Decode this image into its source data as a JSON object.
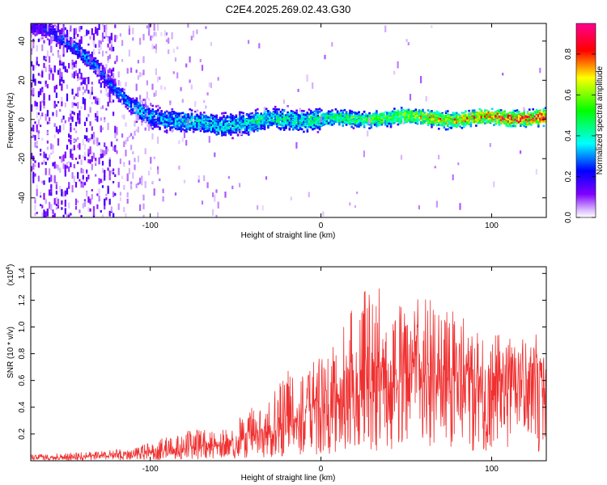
{
  "title": "C2E4.2025.269.02.43.G30",
  "chart_data": [
    {
      "type": "heatmap",
      "panel": "spectrogram",
      "xlabel": "Height of straight line (km)",
      "ylabel": "Frequency (Hz)",
      "xlim": [
        -170,
        132
      ],
      "ylim": [
        -50,
        49
      ],
      "xticks": [
        -100,
        0,
        100
      ],
      "xtick_labels": [
        "-100",
        "0",
        "100"
      ],
      "yticks": [
        -40,
        -20,
        0,
        20,
        40
      ],
      "ytick_labels": [
        "-40",
        "-20",
        "0",
        "20",
        "40"
      ],
      "colorbar": {
        "label": "Normalized spectral amplitude",
        "range": [
          0,
          0.95
        ],
        "ticks": [
          0,
          0.2,
          0.4,
          0.6,
          0.8
        ],
        "tick_labels": [
          "0.0",
          "0.2",
          "0.4",
          "0.6",
          "0.8"
        ],
        "colormap": [
          "#ffffff",
          "#d8b6ff",
          "#8000ff",
          "#0000ff",
          "#00ffff",
          "#00ff00",
          "#ffff00",
          "#ff0000",
          "#ff0090"
        ]
      },
      "ridge": {
        "heights": [
          -170,
          -160,
          -150,
          -140,
          -130,
          -120,
          -110,
          -100,
          -90,
          -80,
          -70,
          -60,
          -50,
          -40,
          -30,
          -20,
          -10,
          0,
          20,
          40,
          60,
          80,
          100,
          120,
          132
        ],
        "frequencies": [
          47,
          45,
          40,
          34,
          26,
          14,
          6,
          2,
          0,
          -1,
          -2,
          -3,
          -2,
          -2,
          0,
          0,
          0,
          0,
          0,
          1,
          1,
          0,
          1,
          1,
          1
        ],
        "peak_amplitude": [
          0.2,
          0.25,
          0.3,
          0.35,
          0.3,
          0.3,
          0.35,
          0.35,
          0.35,
          0.4,
          0.4,
          0.4,
          0.4,
          0.45,
          0.45,
          0.45,
          0.45,
          0.5,
          0.55,
          0.6,
          0.7,
          0.75,
          0.85,
          0.9,
          0.9
        ]
      }
    },
    {
      "type": "line",
      "panel": "snr",
      "xlabel": "Height of straight line (km)",
      "ylabel": "SNR (10 * v/v)",
      "ymultiplier": "(x10^4)",
      "ymultiplier_base": "(x10",
      "ymultiplier_exp": "4",
      "ymultiplier_close": ")",
      "xlim": [
        -170,
        132
      ],
      "ylim": [
        0,
        1.45
      ],
      "xticks": [
        -100,
        0,
        100
      ],
      "xtick_labels": [
        "-100",
        "0",
        "100"
      ],
      "yticks": [
        0.2,
        0.4,
        0.6,
        0.8,
        1.0,
        1.2,
        1.4
      ],
      "ytick_labels": [
        "0.2",
        "0.4",
        "0.6",
        "0.8",
        "1.0",
        "1.2",
        "1.4"
      ],
      "color": "#f03030",
      "envelope": {
        "heights": [
          -170,
          -150,
          -130,
          -110,
          -100,
          -90,
          -80,
          -70,
          -60,
          -50,
          -40,
          -30,
          -20,
          -10,
          0,
          10,
          20,
          30,
          40,
          50,
          60,
          70,
          80,
          90,
          100,
          110,
          120,
          132
        ],
        "upper": [
          0.05,
          0.06,
          0.07,
          0.1,
          0.14,
          0.18,
          0.22,
          0.24,
          0.25,
          0.3,
          0.4,
          0.5,
          0.68,
          0.75,
          0.8,
          0.9,
          1.2,
          1.35,
          1.25,
          1.15,
          1.25,
          1.2,
          1.1,
          1.1,
          1.05,
          0.95,
          0.95,
          0.95
        ],
        "mean": [
          0.02,
          0.02,
          0.03,
          0.04,
          0.05,
          0.06,
          0.07,
          0.08,
          0.09,
          0.11,
          0.14,
          0.17,
          0.22,
          0.28,
          0.33,
          0.38,
          0.45,
          0.5,
          0.52,
          0.52,
          0.53,
          0.52,
          0.5,
          0.5,
          0.5,
          0.48,
          0.47,
          0.47
        ]
      }
    }
  ]
}
